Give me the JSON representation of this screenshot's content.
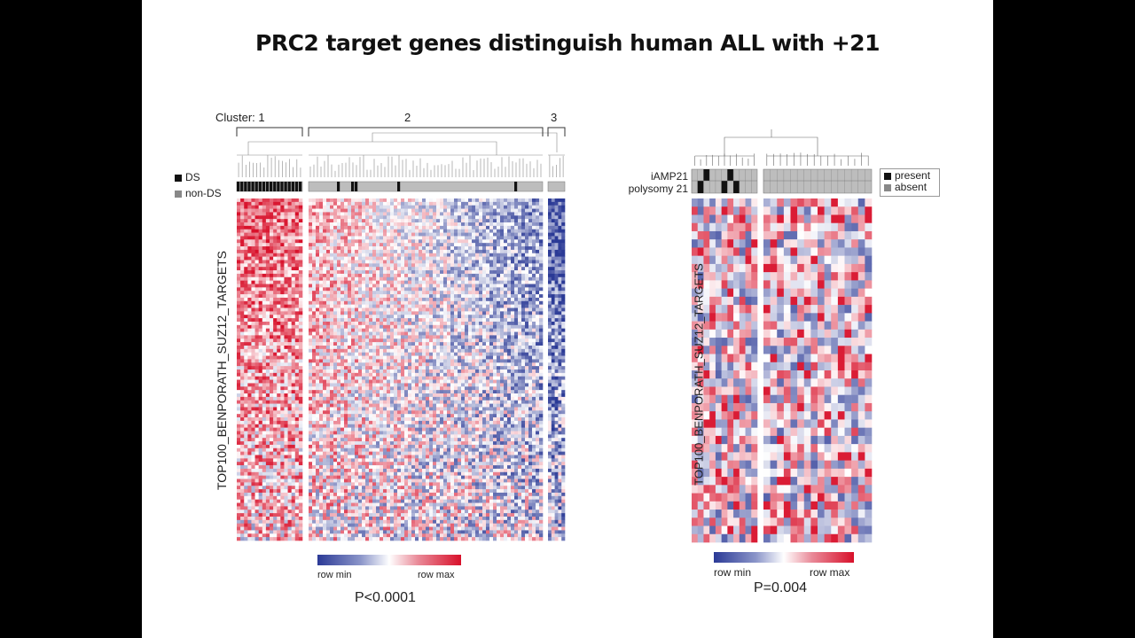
{
  "slide": {
    "title": "PRC2 target genes distinguish human ALL with +21"
  },
  "left_panel": {
    "cluster_prefix": "Cluster: 1",
    "cluster_labels": [
      "2",
      "3"
    ],
    "legend": [
      {
        "label": "DS",
        "color": "#111111"
      },
      {
        "label": "non-DS",
        "color": "#888888"
      }
    ],
    "gene_set_label": "TOP100_BENPORATH_SUZ12_TARGETS",
    "colorbar_min": "row min",
    "colorbar_max": "row max",
    "p_value": "P<0.0001"
  },
  "right_panel": {
    "row_labels": [
      "iAMP21",
      "polysomy 21"
    ],
    "legend": [
      {
        "label": "present",
        "color": "#111111"
      },
      {
        "label": "absent",
        "color": "#888888"
      }
    ],
    "gene_set_label": "TOP100_BENPORATH_SUZ12_TARGETS",
    "colorbar_min": "row min",
    "colorbar_max": "row max",
    "p_value": "P=0.004"
  },
  "chart_data": [
    {
      "type": "heatmap",
      "title": "",
      "ylabel": "TOP100_BENPORATH_SUZ12_TARGETS",
      "color_scale": {
        "min_label": "row min",
        "max_label": "row max",
        "min_color": "#2b3a96",
        "mid_color": "#ffffff",
        "max_color": "#d8102a"
      },
      "column_clusters": [
        {
          "label": "1",
          "columns": 18,
          "ds_status": [
            1,
            1,
            1,
            1,
            1,
            1,
            1,
            1,
            1,
            1,
            1,
            1,
            1,
            1,
            1,
            1,
            1,
            1
          ],
          "mean_level": 0.6
        },
        {
          "label": "2",
          "columns": 66,
          "ds_status": [
            0,
            0,
            0,
            0,
            0,
            0,
            0,
            0,
            1,
            0,
            0,
            0,
            1,
            1,
            0,
            0,
            0,
            0,
            0,
            0,
            0,
            0,
            0,
            0,
            0,
            1,
            0,
            0,
            0,
            0,
            0,
            0,
            0,
            0,
            0,
            0,
            0,
            0,
            0,
            0,
            0,
            0,
            0,
            0,
            0,
            0,
            0,
            0,
            0,
            0,
            0,
            0,
            0,
            0,
            0,
            0,
            0,
            0,
            1,
            0,
            0,
            0,
            0,
            0,
            0,
            0
          ],
          "mean_level_start": 0.35,
          "mean_level_end": -0.55
        },
        {
          "label": "3",
          "columns": 5,
          "ds_status": [
            0,
            0,
            0,
            0,
            0
          ],
          "mean_level": -0.85
        }
      ],
      "rows": 100,
      "p_value": "P<0.0001"
    },
    {
      "type": "heatmap",
      "title": "",
      "ylabel": "TOP100_BENPORATH_SUZ12_TARGETS",
      "color_scale": {
        "min_label": "row min",
        "max_label": "row max",
        "min_color": "#2b3a96",
        "mid_color": "#ffffff",
        "max_color": "#d8102a"
      },
      "column_clusters": [
        {
          "columns": 11,
          "iAMP21": [
            0,
            0,
            1,
            0,
            0,
            0,
            1,
            0,
            0,
            0,
            0
          ],
          "polysomy21": [
            0,
            1,
            0,
            0,
            0,
            1,
            0,
            1,
            0,
            0,
            0
          ]
        },
        {
          "columns": 16,
          "iAMP21": [
            0,
            0,
            0,
            0,
            0,
            0,
            0,
            0,
            0,
            0,
            0,
            0,
            0,
            0,
            0,
            0
          ],
          "polysomy21": [
            0,
            0,
            0,
            0,
            0,
            0,
            0,
            0,
            0,
            0,
            0,
            0,
            0,
            0,
            0,
            0
          ]
        }
      ],
      "rows": 42,
      "p_value": "P=0.004"
    }
  ]
}
